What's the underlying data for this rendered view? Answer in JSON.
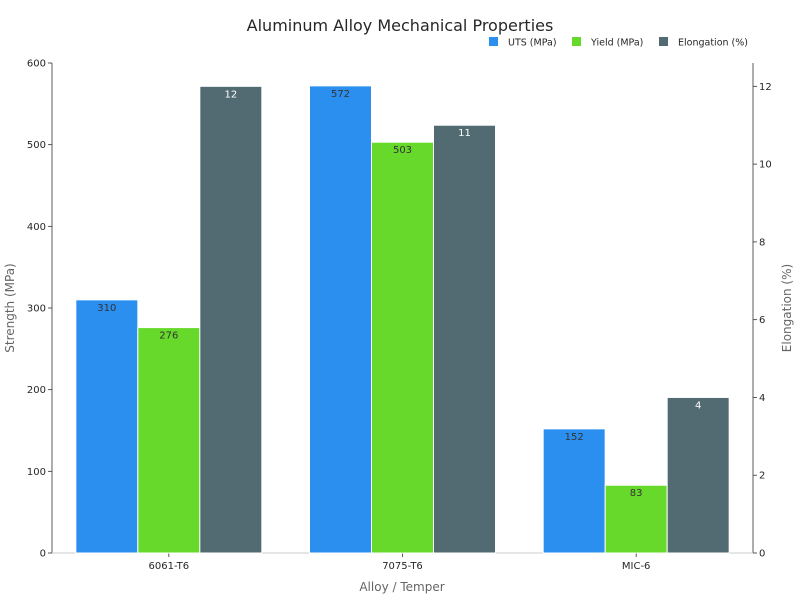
{
  "chart_data": {
    "type": "bar",
    "title": "Aluminum Alloy Mechanical Properties",
    "xlabel": "Alloy / Temper",
    "ylabel": "Strength (MPa)",
    "y2label": "Elongation (%)",
    "categories": [
      "6061-T6",
      "7075-T6",
      "MIC-6"
    ],
    "ylim": [
      0,
      600
    ],
    "y2lim": [
      0,
      12.6
    ],
    "yticks": [
      0,
      100,
      200,
      300,
      400,
      500,
      600
    ],
    "y2ticks": [
      0,
      2,
      4,
      6,
      8,
      10,
      12
    ],
    "legend_position": "top-right",
    "grid": false,
    "series": [
      {
        "name": "UTS (MPa)",
        "axis": "left",
        "color": "#2b8ff0",
        "values": [
          310,
          572,
          152
        ],
        "labels": [
          "310",
          "572",
          "152"
        ],
        "label_color": "#333333"
      },
      {
        "name": "Yield (MPa)",
        "axis": "left",
        "color": "#66d92b",
        "values": [
          276,
          503,
          83
        ],
        "labels": [
          "276",
          "503",
          "83"
        ],
        "label_color": "#333333"
      },
      {
        "name": "Elongation (%)",
        "axis": "right",
        "color": "#526b73",
        "values": [
          12,
          11,
          4
        ],
        "labels": [
          "12",
          "11",
          "4"
        ],
        "label_color": "#ffffff"
      }
    ]
  }
}
